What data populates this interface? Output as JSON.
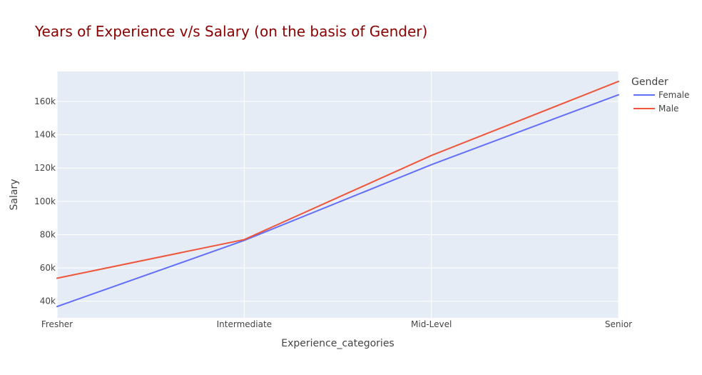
{
  "chart_data": {
    "type": "line",
    "title": "Years of Experience v/s Salary (on the basis of Gender)",
    "xlabel": "Experience_categories",
    "ylabel": "Salary",
    "categories": [
      "Fresher",
      "Intermediate",
      "Mid-Level",
      "Senior"
    ],
    "ylim": [
      30000,
      178000
    ],
    "yticks": [
      40000,
      60000,
      80000,
      100000,
      120000,
      140000,
      160000
    ],
    "ytick_labels": [
      "40k",
      "60k",
      "80k",
      "100k",
      "120k",
      "140k",
      "160k"
    ],
    "grid": true,
    "legend": {
      "title": "Gender",
      "placement": "top-right"
    },
    "series": [
      {
        "name": "Female",
        "color": "#636efa",
        "values": [
          36800,
          76500,
          122000,
          164000
        ]
      },
      {
        "name": "Male",
        "color": "#ef553b",
        "values": [
          53800,
          77000,
          127500,
          172000
        ]
      }
    ],
    "plot_background": "#e5ecf6",
    "title_color": "#8b0000"
  }
}
